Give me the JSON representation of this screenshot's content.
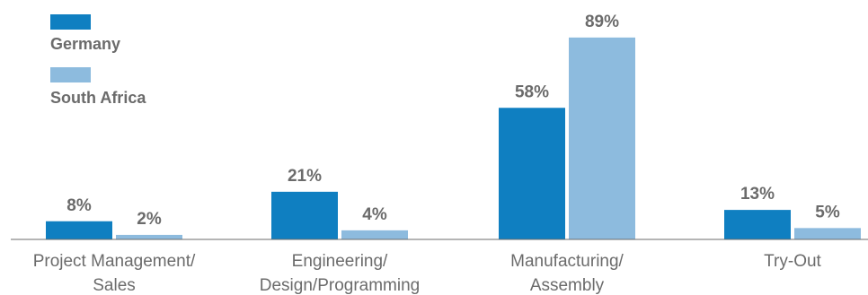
{
  "chart_data": {
    "type": "bar",
    "categories": [
      [
        "Project Management/",
        "Sales"
      ],
      [
        "Engineering/",
        "Design/Programming"
      ],
      [
        "Manufacturing/",
        "Assembly"
      ],
      [
        "Try-Out"
      ]
    ],
    "series": [
      {
        "name": "Germany",
        "color": "#0f7fc1",
        "values": [
          8,
          21,
          58,
          13
        ],
        "labels": [
          "8%",
          "21%",
          "58%",
          "13%"
        ]
      },
      {
        "name": "South Africa",
        "color": "#8dbbde",
        "values": [
          2,
          4,
          89,
          5
        ],
        "labels": [
          "2%",
          "4%",
          "89%",
          "5%"
        ]
      }
    ],
    "ylim": [
      0,
      100
    ],
    "grid": false,
    "legend_position": "top-left",
    "axis_color": "#6b6b6b"
  }
}
